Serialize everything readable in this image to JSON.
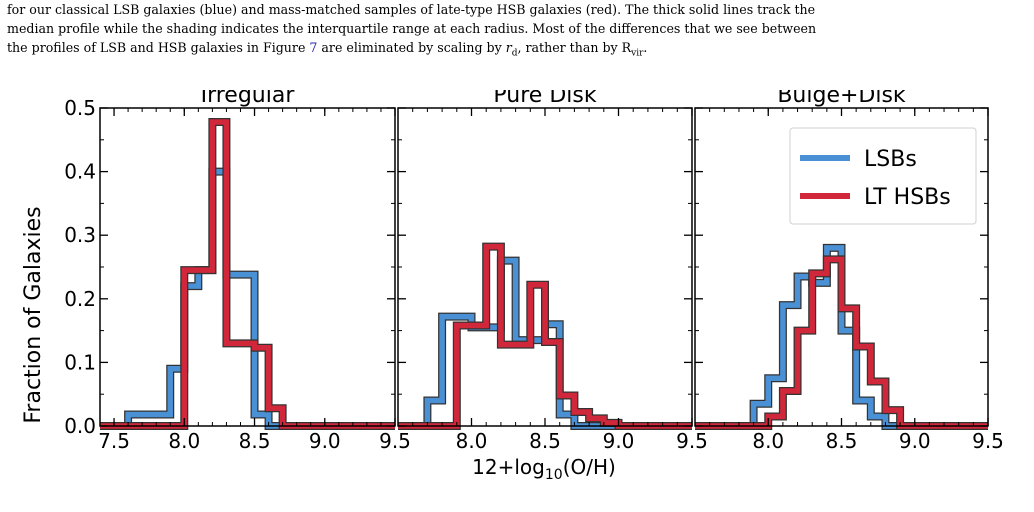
{
  "caption": {
    "line1": "for our classical LSB galaxies (blue) and mass-matched samples of late-type HSB galaxies (red). The thick solid lines track the",
    "line2": "median profile while the shading indicates the interquartile range at each radius. Most of the differences that we see between",
    "line3_a": "the profiles of LSB and HSB galaxies in Figure ",
    "figure_ref": "7",
    "line3_b": " are eliminated by scaling by ",
    "rd_symbol": "r",
    "rd_sub": "d",
    "line3_c": ", rather than by R",
    "rvir_sub": "vir",
    "line3_d": "."
  },
  "figure": {
    "ylabel": "Fraction of Galaxies",
    "xlabel_prefix": "12+log",
    "xlabel_sub": "10",
    "xlabel_suffix": "(O/H)",
    "colors": {
      "lsb": "#4a90d4",
      "hsb": "#d0283a",
      "edge": "#333333"
    },
    "legend": {
      "entries": [
        "LSBs",
        "LT HSBs"
      ]
    }
  },
  "chart_data": [
    {
      "type": "histogram",
      "title": "Irregular",
      "xlim": [
        7.4,
        9.5
      ],
      "ylim": [
        0,
        0.5
      ],
      "xticks": [
        7.5,
        8.0,
        8.5,
        9.0,
        9.5
      ],
      "xtick_labels": [
        "7.5",
        "8.0",
        "8.5",
        "9.0",
        "9.5"
      ],
      "yticks": [
        0.0,
        0.1,
        0.2,
        0.3,
        0.4,
        0.5
      ],
      "ytick_labels": [
        "0.0",
        "0.1",
        "0.2",
        "0.3",
        "0.4",
        "0.5"
      ],
      "bin_width": 0.1,
      "series": [
        {
          "name": "LSBs",
          "bins": [
            [
              7.4,
              0.0
            ],
            [
              7.5,
              0.0
            ],
            [
              7.6,
              0.018
            ],
            [
              7.7,
              0.018
            ],
            [
              7.8,
              0.018
            ],
            [
              7.9,
              0.09
            ],
            [
              8.0,
              0.22
            ],
            [
              8.1,
              0.245
            ],
            [
              8.2,
              0.4
            ],
            [
              8.3,
              0.238
            ],
            [
              8.4,
              0.238
            ],
            [
              8.5,
              0.018
            ],
            [
              8.6,
              0.0
            ],
            [
              8.7,
              0.0
            ],
            [
              8.8,
              0.0
            ],
            [
              8.9,
              0.0
            ],
            [
              9.0,
              0.0
            ],
            [
              9.1,
              0.0
            ],
            [
              9.2,
              0.0
            ],
            [
              9.3,
              0.0
            ],
            [
              9.4,
              0.0
            ]
          ]
        },
        {
          "name": "LT HSBs",
          "bins": [
            [
              7.4,
              0.0
            ],
            [
              7.5,
              0.0
            ],
            [
              7.6,
              0.0
            ],
            [
              7.7,
              0.0
            ],
            [
              7.8,
              0.0
            ],
            [
              7.9,
              0.0
            ],
            [
              8.0,
              0.245
            ],
            [
              8.1,
              0.245
            ],
            [
              8.2,
              0.478
            ],
            [
              8.3,
              0.13
            ],
            [
              8.4,
              0.13
            ],
            [
              8.5,
              0.123
            ],
            [
              8.6,
              0.028
            ],
            [
              8.7,
              0.0
            ],
            [
              8.8,
              0.0
            ],
            [
              8.9,
              0.0
            ],
            [
              9.0,
              0.0
            ],
            [
              9.1,
              0.0
            ],
            [
              9.2,
              0.0
            ],
            [
              9.3,
              0.0
            ],
            [
              9.4,
              0.0
            ]
          ]
        }
      ]
    },
    {
      "type": "histogram",
      "title": "Pure Disk",
      "xlim": [
        7.5,
        9.5
      ],
      "ylim": [
        0,
        0.5
      ],
      "xticks": [
        8.0,
        8.5,
        9.0,
        9.5
      ],
      "xtick_labels": [
        "8.0",
        "8.5",
        "9.0",
        "9.5"
      ],
      "bin_width": 0.1,
      "series": [
        {
          "name": "LSBs",
          "bins": [
            [
              7.5,
              0.0
            ],
            [
              7.6,
              0.0
            ],
            [
              7.7,
              0.04
            ],
            [
              7.8,
              0.172
            ],
            [
              7.9,
              0.172
            ],
            [
              8.0,
              0.155
            ],
            [
              8.1,
              0.155
            ],
            [
              8.2,
              0.26
            ],
            [
              8.3,
              0.135
            ],
            [
              8.4,
              0.135
            ],
            [
              8.5,
              0.16
            ],
            [
              8.6,
              0.018
            ],
            [
              8.7,
              0.0
            ],
            [
              8.8,
              0.0
            ],
            [
              8.9,
              0.0
            ],
            [
              9.0,
              0.0
            ],
            [
              9.1,
              0.0
            ],
            [
              9.2,
              0.0
            ],
            [
              9.3,
              0.0
            ],
            [
              9.4,
              0.0
            ]
          ]
        },
        {
          "name": "LT HSBs",
          "bins": [
            [
              7.5,
              0.0
            ],
            [
              7.6,
              0.0
            ],
            [
              7.7,
              0.0
            ],
            [
              7.8,
              0.0
            ],
            [
              7.9,
              0.158
            ],
            [
              8.0,
              0.158
            ],
            [
              8.1,
              0.282
            ],
            [
              8.2,
              0.128
            ],
            [
              8.3,
              0.128
            ],
            [
              8.4,
              0.222
            ],
            [
              8.5,
              0.132
            ],
            [
              8.6,
              0.048
            ],
            [
              8.7,
              0.022
            ],
            [
              8.8,
              0.012
            ],
            [
              8.9,
              0.005
            ],
            [
              9.0,
              0.0
            ],
            [
              9.1,
              0.0
            ],
            [
              9.2,
              0.0
            ],
            [
              9.3,
              0.0
            ],
            [
              9.4,
              0.0
            ]
          ]
        }
      ]
    },
    {
      "type": "histogram",
      "title": "Bulge+Disk",
      "xlim": [
        7.5,
        9.5
      ],
      "ylim": [
        0,
        0.5
      ],
      "xticks": [
        8.0,
        8.5,
        9.0,
        9.5
      ],
      "xtick_labels": [
        "8.0",
        "8.5",
        "9.0",
        "9.5"
      ],
      "bin_width": 0.1,
      "series": [
        {
          "name": "LSBs",
          "bins": [
            [
              7.5,
              0.0
            ],
            [
              7.6,
              0.0
            ],
            [
              7.7,
              0.0
            ],
            [
              7.8,
              0.0
            ],
            [
              7.9,
              0.035
            ],
            [
              8.0,
              0.075
            ],
            [
              8.1,
              0.19
            ],
            [
              8.2,
              0.235
            ],
            [
              8.3,
              0.225
            ],
            [
              8.4,
              0.28
            ],
            [
              8.5,
              0.15
            ],
            [
              8.6,
              0.04
            ],
            [
              8.7,
              0.015
            ],
            [
              8.8,
              0.0
            ],
            [
              8.9,
              0.0
            ],
            [
              9.0,
              0.0
            ],
            [
              9.1,
              0.0
            ],
            [
              9.2,
              0.0
            ],
            [
              9.3,
              0.0
            ],
            [
              9.4,
              0.0
            ]
          ]
        },
        {
          "name": "LT HSBs",
          "bins": [
            [
              7.5,
              0.0
            ],
            [
              7.6,
              0.0
            ],
            [
              7.7,
              0.0
            ],
            [
              7.8,
              0.0
            ],
            [
              7.9,
              0.0
            ],
            [
              8.0,
              0.015
            ],
            [
              8.1,
              0.055
            ],
            [
              8.2,
              0.15
            ],
            [
              8.3,
              0.24
            ],
            [
              8.4,
              0.262
            ],
            [
              8.5,
              0.185
            ],
            [
              8.6,
              0.125
            ],
            [
              8.7,
              0.07
            ],
            [
              8.8,
              0.025
            ],
            [
              8.9,
              0.0
            ],
            [
              9.0,
              0.0
            ],
            [
              9.1,
              0.0
            ],
            [
              9.2,
              0.0
            ],
            [
              9.3,
              0.0
            ],
            [
              9.4,
              0.0
            ]
          ]
        }
      ]
    }
  ]
}
